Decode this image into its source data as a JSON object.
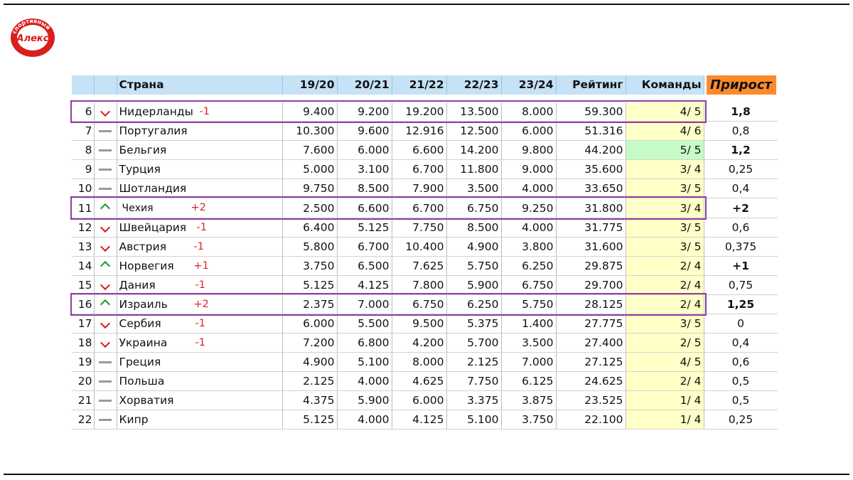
{
  "logo": {
    "text_top": "Алекс",
    "text_ring": "спортивный"
  },
  "header": {
    "country": "Страна",
    "seasons": [
      "19/20",
      "20/21",
      "21/22",
      "22/23",
      "23/24"
    ],
    "rating": "Рейтинг",
    "teams": "Команды",
    "growth": "Прирост"
  },
  "rows": [
    {
      "pos": "6",
      "trend": "down",
      "country": "Нидерланды",
      "change": "-1",
      "v": [
        "9.400",
        "9.200",
        "19.200",
        "13.500",
        "8.000"
      ],
      "rating": "59.300",
      "teams": "4/ 5",
      "growth": "1,8",
      "growth_bold": true,
      "highlight": true
    },
    {
      "pos": "7",
      "trend": "same",
      "country": "Португалия",
      "change": "",
      "v": [
        "10.300",
        "9.600",
        "12.916",
        "12.500",
        "6.000"
      ],
      "rating": "51.316",
      "teams": "4/ 6",
      "growth": "0,8",
      "growth_bold": false
    },
    {
      "pos": "8",
      "trend": "same",
      "country": "Бельгия",
      "change": "",
      "v": [
        "7.600",
        "6.000",
        "6.600",
        "14.200",
        "9.800"
      ],
      "rating": "44.200",
      "teams": "5/ 5",
      "teams_green": true,
      "growth": "1,2",
      "growth_bold": true
    },
    {
      "pos": "9",
      "trend": "same",
      "country": "Турция",
      "change": "",
      "v": [
        "5.000",
        "3.100",
        "6.700",
        "11.800",
        "9.000"
      ],
      "rating": "35.600",
      "teams": "3/ 4",
      "growth": "0,25",
      "growth_bold": false
    },
    {
      "pos": "10",
      "trend": "same",
      "country": "Шотландия",
      "change": "",
      "v": [
        "9.750",
        "8.500",
        "7.900",
        "3.500",
        "4.000"
      ],
      "rating": "33.650",
      "teams": "3/ 5",
      "growth": "0,4",
      "growth_bold": false
    },
    {
      "pos": "11",
      "trend": "up",
      "country": "Чехия",
      "change": "+2",
      "v": [
        "2.500",
        "6.600",
        "6.700",
        "6.750",
        "9.250"
      ],
      "rating": "31.800",
      "teams": "3/ 4",
      "growth": "+2",
      "growth_bold": true,
      "highlight": true,
      "small": true
    },
    {
      "pos": "12",
      "trend": "down",
      "country": "Швейцария",
      "change": "-1",
      "v": [
        "6.400",
        "5.125",
        "7.750",
        "8.500",
        "4.000"
      ],
      "rating": "31.775",
      "teams": "3/ 5",
      "growth": "0,6",
      "growth_bold": false
    },
    {
      "pos": "13",
      "trend": "down",
      "country": "Австрия",
      "change": "-1",
      "v": [
        "5.800",
        "6.700",
        "10.400",
        "4.900",
        "3.800"
      ],
      "rating": "31.600",
      "teams": "3/ 5",
      "growth": "0,375",
      "growth_bold": false
    },
    {
      "pos": "14",
      "trend": "up",
      "country": "Норвегия",
      "change": "+1",
      "v": [
        "3.750",
        "6.500",
        "7.625",
        "5.750",
        "6.250"
      ],
      "rating": "29.875",
      "teams": "2/ 4",
      "growth": "+1",
      "growth_bold": true
    },
    {
      "pos": "15",
      "trend": "down",
      "country": "Дания",
      "change": "-1",
      "v": [
        "5.125",
        "4.125",
        "7.800",
        "5.900",
        "6.750"
      ],
      "rating": "29.700",
      "teams": "2/ 4",
      "growth": "0,75",
      "growth_bold": false
    },
    {
      "pos": "16",
      "trend": "up",
      "country": "Израиль",
      "change": "+2",
      "v": [
        "2.375",
        "7.000",
        "6.750",
        "6.250",
        "5.750"
      ],
      "rating": "28.125",
      "teams": "2/ 4",
      "growth": "1,25",
      "growth_bold": true,
      "highlight": true
    },
    {
      "pos": "17",
      "trend": "down",
      "country": "Сербия",
      "change": "-1",
      "v": [
        "6.000",
        "5.500",
        "9.500",
        "5.375",
        "1.400"
      ],
      "rating": "27.775",
      "teams": "3/ 5",
      "growth": "0",
      "growth_bold": false
    },
    {
      "pos": "18",
      "trend": "down",
      "country": "Украина",
      "change": "-1",
      "v": [
        "7.200",
        "6.800",
        "4.200",
        "5.700",
        "3.500"
      ],
      "rating": "27.400",
      "teams": "2/ 5",
      "growth": "0,4",
      "growth_bold": false
    },
    {
      "pos": "19",
      "trend": "same",
      "country": "Греция",
      "change": "",
      "v": [
        "4.900",
        "5.100",
        "8.000",
        "2.125",
        "7.000"
      ],
      "rating": "27.125",
      "teams": "4/ 5",
      "growth": "0,6",
      "growth_bold": false
    },
    {
      "pos": "20",
      "trend": "same",
      "country": "Польша",
      "change": "",
      "v": [
        "2.125",
        "4.000",
        "4.625",
        "7.750",
        "6.125"
      ],
      "rating": "24.625",
      "teams": "2/ 4",
      "growth": "0,5",
      "growth_bold": false
    },
    {
      "pos": "21",
      "trend": "same",
      "country": "Хорватия",
      "change": "",
      "v": [
        "4.375",
        "5.900",
        "6.000",
        "3.375",
        "3.875"
      ],
      "rating": "23.525",
      "teams": "1/ 4",
      "growth": "0,5",
      "growth_bold": false
    },
    {
      "pos": "22",
      "trend": "same",
      "country": "Кипр",
      "change": "",
      "v": [
        "5.125",
        "4.000",
        "4.125",
        "5.100",
        "3.750"
      ],
      "rating": "22.100",
      "teams": "1/ 4",
      "growth": "0,25",
      "growth_bold": false
    }
  ],
  "colors": {
    "header_bg": "#c5e2f7",
    "growth_header": "#fd8a2a",
    "teams_bg": "#ffffc8",
    "teams_green": "#c6fbc6",
    "highlight": "#8e3fa0",
    "negative": "#e02020",
    "positive": "#20a020"
  }
}
